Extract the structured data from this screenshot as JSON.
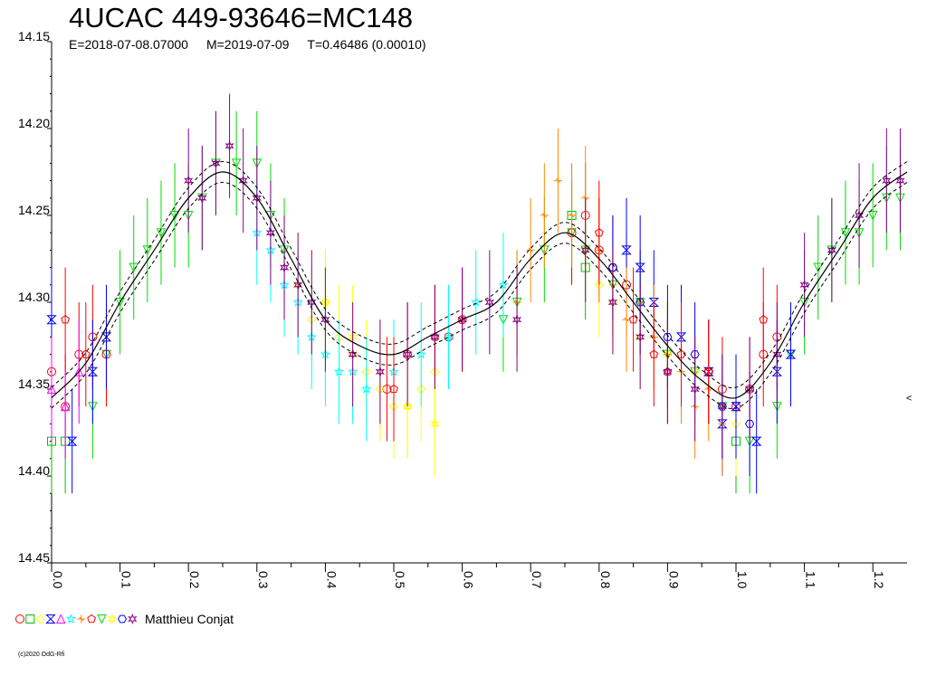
{
  "title": "4UCAC 449-93646=MC148",
  "subtitle": {
    "epoch": "E=2018-07-08.07000",
    "mid": "M=2019-07-09",
    "period": "T=0.46486 (0.00010)"
  },
  "legend": {
    "observer": "Matthieu Conjat",
    "series_colors": [
      "#ff0000",
      "#00c000",
      "#ffff00",
      "#0000ff",
      "#ff00ff",
      "#00ffff",
      "#ff8800",
      "#ff0000",
      "#00dd00",
      "#ffff00",
      "#0000ff",
      "#880088"
    ]
  },
  "copyright": "(c)2020 OdG-Rfi",
  "chart_data": {
    "type": "scatter",
    "title": "4UCAC 449-93646=MC148",
    "xlabel": "",
    "ylabel": "",
    "xlim": [
      0,
      1.25
    ],
    "ylim": [
      14.15,
      14.45
    ],
    "y_inverted": true,
    "x_ticks": [
      "0.0",
      "0.1",
      "0.2",
      "0.3",
      "0.4",
      "0.5",
      "0.6",
      "0.7",
      "0.8",
      "0.9",
      "1.0",
      "1.1",
      "1.2"
    ],
    "y_ticks": [
      "14.15",
      "14.20",
      "14.25",
      "14.30",
      "14.35",
      "14.40",
      "14.45"
    ],
    "typical_error": 0.03,
    "fit_curve": {
      "x": [
        0.0,
        0.05,
        0.1,
        0.15,
        0.2,
        0.25,
        0.3,
        0.35,
        0.4,
        0.45,
        0.5,
        0.55,
        0.6,
        0.65,
        0.7,
        0.75,
        0.8,
        0.85,
        0.9,
        0.95,
        1.0,
        1.05,
        1.1,
        1.15,
        1.2,
        1.25
      ],
      "y": [
        14.355,
        14.335,
        14.3,
        14.27,
        14.24,
        14.225,
        14.24,
        14.275,
        14.31,
        14.325,
        14.33,
        14.32,
        14.31,
        14.3,
        14.275,
        14.26,
        14.275,
        14.3,
        14.325,
        14.345,
        14.355,
        14.335,
        14.3,
        14.27,
        14.24,
        14.225
      ]
    },
    "series": [
      {
        "color": "#00dd00",
        "marker": "triangle-down",
        "x": [
          0.06,
          0.08,
          0.1,
          0.12,
          0.14,
          0.16,
          0.18,
          0.2,
          0.22,
          0.24,
          0.27,
          0.3,
          0.32,
          0.34,
          0.66,
          0.68,
          0.72,
          0.76,
          0.78,
          0.82,
          0.86,
          0.9,
          0.94,
          0.98,
          1.02,
          1.06,
          1.08,
          1.1,
          1.12,
          1.14,
          1.16,
          1.18,
          1.2,
          1.22,
          1.24
        ],
        "y": [
          14.36,
          14.33,
          14.3,
          14.28,
          14.27,
          14.26,
          14.25,
          14.25,
          14.24,
          14.22,
          14.22,
          14.22,
          14.25,
          14.27,
          14.31,
          14.3,
          14.27,
          14.26,
          14.27,
          14.29,
          14.3,
          14.33,
          14.34,
          14.36,
          14.38,
          14.36,
          14.33,
          14.3,
          14.28,
          14.27,
          14.26,
          14.26,
          14.25,
          14.24,
          14.24
        ]
      },
      {
        "color": "#ff0000",
        "marker": "circle",
        "x": [
          0.0,
          0.02,
          0.04,
          0.06,
          0.08,
          0.49,
          0.52,
          0.58,
          0.6,
          0.76,
          0.78,
          0.8,
          0.82,
          0.84,
          0.96,
          0.98,
          1.0,
          1.02,
          1.04,
          1.06
        ],
        "y": [
          14.34,
          14.36,
          14.33,
          14.32,
          14.33,
          14.35,
          14.33,
          14.32,
          14.31,
          14.26,
          14.25,
          14.27,
          14.28,
          14.29,
          14.34,
          14.35,
          14.36,
          14.35,
          14.33,
          14.32
        ]
      },
      {
        "color": "#00c000",
        "marker": "square",
        "x": [
          0.0,
          0.02,
          0.76,
          0.78,
          1.0
        ],
        "y": [
          14.38,
          14.38,
          14.25,
          14.28,
          14.38
        ]
      },
      {
        "color": "#ffff00",
        "marker": "diamond",
        "x": [
          0.36,
          0.38,
          0.4,
          0.42,
          0.44,
          0.46,
          0.48,
          0.5,
          0.52,
          0.54,
          0.56,
          0.78,
          0.8,
          0.82,
          0.86,
          0.9,
          0.94,
          0.98,
          1.0
        ],
        "y": [
          14.29,
          14.31,
          14.3,
          14.32,
          14.33,
          14.34,
          14.35,
          14.36,
          14.36,
          14.35,
          14.34,
          14.27,
          14.29,
          14.3,
          14.32,
          14.33,
          14.34,
          14.36,
          14.37
        ]
      },
      {
        "color": "#0000ff",
        "marker": "hourglass",
        "x": [
          0.0,
          0.03,
          0.06,
          0.08,
          0.84,
          0.86,
          0.88,
          0.92,
          0.96,
          0.98,
          1.0,
          1.03,
          1.06,
          1.08
        ],
        "y": [
          14.31,
          14.38,
          14.34,
          14.32,
          14.27,
          14.28,
          14.3,
          14.32,
          14.34,
          14.37,
          14.36,
          14.38,
          14.34,
          14.33
        ]
      },
      {
        "color": "#ff00ff",
        "marker": "triangle-up",
        "x": [
          0.0,
          0.02,
          0.04
        ],
        "y": [
          14.35,
          14.36,
          14.34
        ]
      },
      {
        "color": "#00ffff",
        "marker": "star",
        "x": [
          0.3,
          0.32,
          0.34,
          0.36,
          0.38,
          0.4,
          0.42,
          0.44,
          0.46,
          0.5,
          0.54,
          0.58,
          0.62,
          0.66
        ],
        "y": [
          14.26,
          14.27,
          14.29,
          14.3,
          14.32,
          14.33,
          14.34,
          14.34,
          14.35,
          14.34,
          14.33,
          14.32,
          14.3,
          14.29
        ]
      },
      {
        "color": "#ff8800",
        "marker": "cross",
        "x": [
          0.68,
          0.7,
          0.72,
          0.74,
          0.76,
          0.78,
          0.8,
          0.82,
          0.84,
          0.86,
          0.88,
          0.9,
          0.92,
          0.94,
          0.96,
          0.98
        ],
        "y": [
          14.3,
          14.27,
          14.25,
          14.23,
          14.25,
          14.24,
          14.27,
          14.29,
          14.31,
          14.3,
          14.32,
          14.33,
          14.34,
          14.36,
          14.35,
          14.37
        ]
      },
      {
        "color": "#ff0000",
        "marker": "pentagon",
        "x": [
          0.02,
          0.05,
          0.5,
          0.56,
          0.8,
          0.85,
          0.88,
          0.9,
          0.92,
          0.96,
          1.04
        ],
        "y": [
          14.31,
          14.33,
          14.35,
          14.32,
          14.26,
          14.31,
          14.33,
          14.34,
          14.33,
          14.34,
          14.31
        ]
      },
      {
        "color": "#ffff00",
        "marker": "star6",
        "x": [
          0.4,
          0.44,
          0.48,
          0.52,
          0.56
        ],
        "y": [
          14.3,
          14.32,
          14.34,
          14.36,
          14.37
        ]
      },
      {
        "color": "#0000ff",
        "marker": "hexagon",
        "x": [
          0.82,
          0.86,
          0.9,
          0.94,
          0.98,
          1.02
        ],
        "y": [
          14.28,
          14.3,
          14.32,
          14.33,
          14.36,
          14.37
        ]
      },
      {
        "color": "#880088",
        "marker": "starburst",
        "x": [
          0.2,
          0.22,
          0.24,
          0.26,
          0.28,
          0.3,
          0.32,
          0.34,
          0.36,
          0.38,
          0.4,
          0.44,
          0.48,
          0.52,
          0.56,
          0.6,
          0.64,
          0.68,
          0.78,
          0.82,
          0.86,
          0.9,
          0.94,
          0.98,
          1.02,
          1.06,
          1.1,
          1.14,
          1.18,
          1.22,
          1.24
        ],
        "y": [
          14.23,
          14.24,
          14.22,
          14.21,
          14.23,
          14.24,
          14.26,
          14.28,
          14.29,
          14.3,
          14.31,
          14.33,
          14.34,
          14.33,
          14.32,
          14.31,
          14.3,
          14.31,
          14.27,
          14.3,
          14.32,
          14.34,
          14.35,
          14.36,
          14.35,
          14.33,
          14.29,
          14.27,
          14.25,
          14.23,
          14.23
        ]
      }
    ]
  }
}
